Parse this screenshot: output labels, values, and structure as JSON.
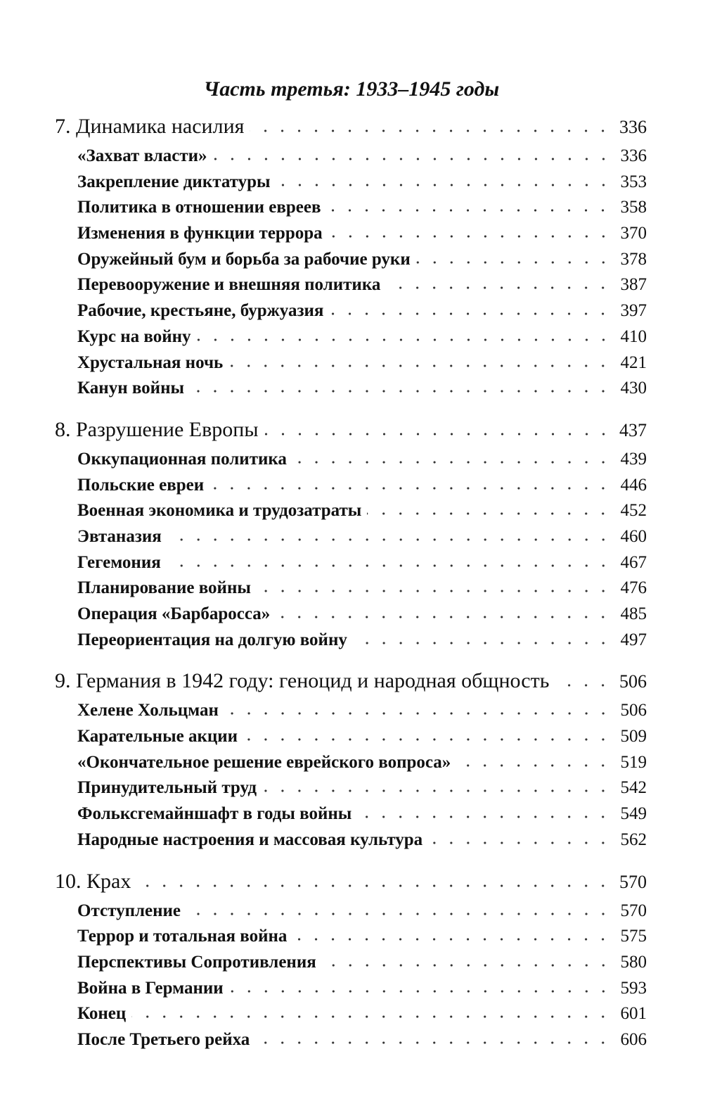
{
  "part_title": "Часть третья: 1933–1945 годы",
  "chapters": [
    {
      "title": "7. Динамика насилия",
      "page": 336,
      "sections": [
        {
          "title": "«Захват власти»",
          "page": 336
        },
        {
          "title": "Закрепление диктатуры",
          "page": 353
        },
        {
          "title": "Политика в отношении евреев",
          "page": 358
        },
        {
          "title": "Изменения в функции террора",
          "page": 370
        },
        {
          "title": "Оружейный бум и борьба за рабочие руки",
          "page": 378
        },
        {
          "title": "Перевооружение и внешняя политика",
          "page": 387
        },
        {
          "title": "Рабочие, крестьяне, буржуазия",
          "page": 397
        },
        {
          "title": "Курс на войну",
          "page": 410
        },
        {
          "title": "Хрустальная ночь",
          "page": 421
        },
        {
          "title": "Канун войны",
          "page": 430
        }
      ]
    },
    {
      "title": "8. Разрушение Европы",
      "page": 437,
      "sections": [
        {
          "title": "Оккупационная политика",
          "page": 439
        },
        {
          "title": "Польские евреи",
          "page": 446
        },
        {
          "title": "Военная экономика и трудозатраты",
          "page": 452
        },
        {
          "title": "Эвтаназия",
          "page": 460
        },
        {
          "title": "Гегемония",
          "page": 467
        },
        {
          "title": "Планирование войны",
          "page": 476
        },
        {
          "title": "Операция «Барбаросса»",
          "page": 485
        },
        {
          "title": "Переориентация на долгую войну",
          "page": 497
        }
      ]
    },
    {
      "title": "9. Германия в 1942 году: геноцид и народная общность",
      "page": 506,
      "sections": [
        {
          "title": "Хелене Хольцман",
          "page": 506
        },
        {
          "title": "Карательные акции",
          "page": 509
        },
        {
          "title": "«Окончательное решение еврейского вопроса»",
          "page": 519
        },
        {
          "title": "Принудительный труд",
          "page": 542
        },
        {
          "title": "Фольксгемайншафт в годы войны",
          "page": 549
        },
        {
          "title": "Народные настроения и массовая культура",
          "page": 562
        }
      ]
    },
    {
      "title": "10. Крах",
      "page": 570,
      "sections": [
        {
          "title": "Отступление",
          "page": 570
        },
        {
          "title": "Террор и тотальная война",
          "page": 575
        },
        {
          "title": "Перспективы Сопротивления",
          "page": 580
        },
        {
          "title": "Война в Германии",
          "page": 593
        },
        {
          "title": "Конец",
          "page": 601
        },
        {
          "title": "После Третьего рейха",
          "page": 606
        }
      ]
    }
  ]
}
